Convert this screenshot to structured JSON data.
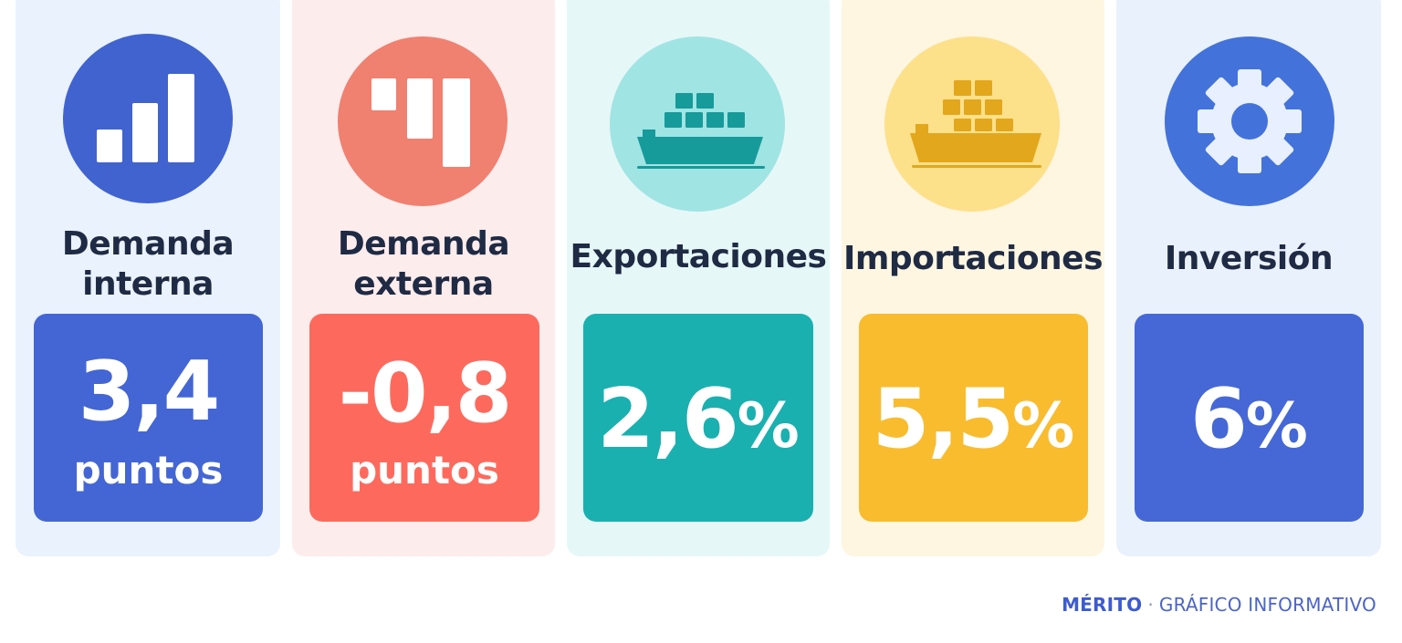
{
  "cards": [
    {
      "title_line1": "Demanda",
      "title_line2": "interna",
      "value": "3,4",
      "unit": "puntos",
      "suffix": "",
      "icon": "bar-chart-icon",
      "colors": {
        "bg": "#e9f2fd",
        "circle": "#4063d0",
        "box": "#4466d4"
      }
    },
    {
      "title_line1": "Demanda",
      "title_line2": "externa",
      "value": "-0,8",
      "unit": "puntos",
      "suffix": "",
      "icon": "descending-bars-icon",
      "colors": {
        "bg": "#fdecec",
        "circle": "#f08070",
        "box": "#fd6a5d"
      }
    },
    {
      "title_line1": "Exportaciones",
      "title_line2": "",
      "value": "2,6",
      "unit": "",
      "suffix": "%",
      "icon": "cargo-ship-icon",
      "colors": {
        "bg": "#e6f7f7",
        "circle": "#a0e4e4",
        "box": "#1ab0b0"
      }
    },
    {
      "title_line1": "Importaciones",
      "title_line2": "",
      "value": "5,5",
      "unit": "",
      "suffix": "%",
      "icon": "cargo-ship-icon",
      "colors": {
        "bg": "#fef6e0",
        "circle": "#fde08a",
        "box": "#f8bc2e"
      }
    },
    {
      "title_line1": "Inversión",
      "title_line2": "",
      "value": "6",
      "unit": "",
      "suffix": "%",
      "icon": "gear-icon",
      "colors": {
        "bg": "#e9f1fd",
        "circle": "#4372da",
        "box": "#4568d6"
      }
    }
  ],
  "footer": {
    "brand": "MÉRITO",
    "separator": "·",
    "label": "GRÁFICO INFORMATIVO"
  }
}
